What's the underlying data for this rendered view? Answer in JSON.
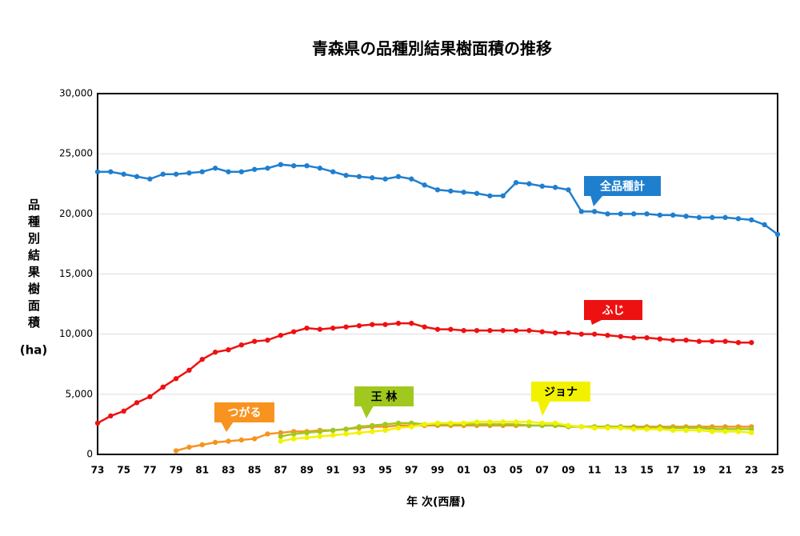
{
  "chart_data": {
    "type": "line",
    "title": "青森県の品種別結果樹面積の推移",
    "y_label": "品種別結果樹面積",
    "y_unit": "(ha)",
    "x_label": "年 次(西暦)",
    "categories": [
      "73",
      null,
      "75",
      null,
      "77",
      null,
      "79",
      null,
      "81",
      null,
      "83",
      null,
      "85",
      null,
      "87",
      null,
      "89",
      null,
      "91",
      null,
      "93",
      null,
      "95",
      null,
      "97",
      null,
      "99",
      null,
      "01",
      null,
      "03",
      null,
      "05",
      null,
      "07",
      null,
      "09",
      null,
      "11",
      null,
      "13",
      null,
      "15",
      null,
      "17",
      null,
      "19",
      null,
      "21",
      null,
      "23",
      null,
      "25"
    ],
    "ylim": [
      0,
      30000
    ],
    "yticks": [
      0,
      {
        "value": 5000,
        "label": "5,000"
      },
      {
        "value": 10000,
        "label": "10,000"
      },
      {
        "value": 15000,
        "label": "15,000"
      },
      {
        "value": 20000,
        "label": "20,000"
      },
      {
        "value": 25000,
        "label": "25,000"
      },
      {
        "value": 30000,
        "label": "30,000"
      }
    ],
    "grid": true,
    "series": [
      {
        "name": "全品種計",
        "color": "#1f7fcf",
        "values": [
          23500,
          23500,
          23300,
          23100,
          22900,
          23300,
          23300,
          23400,
          23500,
          23800,
          23500,
          23500,
          23700,
          23800,
          24100,
          24000,
          24000,
          23800,
          23500,
          23200,
          23100,
          23000,
          22900,
          23100,
          22900,
          22400,
          22000,
          21900,
          21800,
          21700,
          21500,
          21500,
          22600,
          22500,
          22300,
          22200,
          22000,
          20200,
          20200,
          20000,
          20000,
          20000,
          20000,
          19900,
          19900,
          19800,
          19700,
          19700,
          19700,
          19600,
          19500,
          19100,
          18300
        ]
      },
      {
        "name": "ふじ",
        "color": "#ee1111",
        "values": [
          2600,
          3200,
          3600,
          4300,
          4800,
          5600,
          6300,
          7000,
          7900,
          8500,
          8700,
          9100,
          9400,
          9500,
          9900,
          10200,
          10500,
          10400,
          10500,
          10600,
          10700,
          10800,
          10800,
          10900,
          10900,
          10600,
          10400,
          10400,
          10300,
          10300,
          10300,
          10300,
          10300,
          10300,
          10200,
          10100,
          10100,
          10000,
          10000,
          9900,
          9800,
          9700,
          9700,
          9600,
          9500,
          9500,
          9400,
          9400,
          9400,
          9300,
          9300,
          null,
          null
        ]
      },
      {
        "name": "つがる",
        "color": "#f7931e",
        "values": [
          null,
          null,
          null,
          null,
          null,
          null,
          300,
          600,
          800,
          1000,
          1100,
          1200,
          1300,
          1700,
          1800,
          1900,
          1900,
          2000,
          2000,
          2100,
          2200,
          2300,
          2300,
          2400,
          2400,
          2400,
          2400,
          2400,
          2400,
          2400,
          2400,
          2400,
          2400,
          2400,
          2400,
          2400,
          2300,
          2300,
          2300,
          2300,
          2300,
          2300,
          2300,
          2300,
          2300,
          2300,
          2300,
          2300,
          2300,
          2300,
          2300,
          null,
          null
        ]
      },
      {
        "name": "王 林",
        "color": "#a0c81e",
        "values": [
          null,
          null,
          null,
          null,
          null,
          null,
          null,
          null,
          null,
          null,
          null,
          null,
          null,
          null,
          1500,
          1700,
          1800,
          1900,
          2000,
          2100,
          2300,
          2400,
          2500,
          2600,
          2600,
          2500,
          2500,
          2500,
          2500,
          2500,
          2500,
          2500,
          2500,
          2400,
          2400,
          2400,
          2300,
          2300,
          2300,
          2300,
          2300,
          2200,
          2200,
          2200,
          2200,
          2200,
          2200,
          2100,
          2100,
          2100,
          2100,
          null,
          null
        ]
      },
      {
        "name": "ジョナ",
        "color": "#f2f200",
        "values": [
          null,
          null,
          null,
          null,
          null,
          null,
          null,
          null,
          null,
          null,
          null,
          null,
          null,
          null,
          1100,
          1300,
          1400,
          1500,
          1600,
          1700,
          1800,
          1900,
          2000,
          2200,
          2300,
          2500,
          2600,
          2600,
          2600,
          2700,
          2700,
          2700,
          2700,
          2700,
          2600,
          2600,
          2400,
          2300,
          2200,
          2200,
          2200,
          2100,
          2100,
          2100,
          2000,
          2000,
          2000,
          1900,
          1900,
          1900,
          1800,
          null,
          null
        ]
      }
    ]
  }
}
